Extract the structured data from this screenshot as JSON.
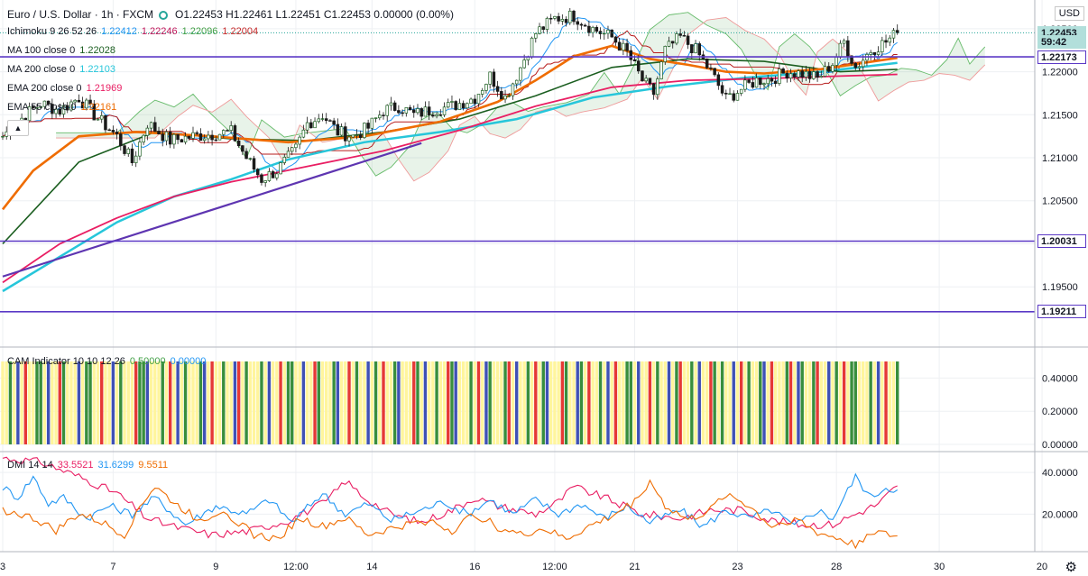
{
  "header": {
    "symbol": "Euro / U.S. Dollar · 1h · FXCM",
    "ohlc": "O1.22453 H1.22461 L1.22451 C1.22453 0.00000 (0.00%)"
  },
  "currency_label": "USD",
  "legend": [
    {
      "label": "Ichimoku 9 26 52 26",
      "values": [
        {
          "v": "1.22412",
          "color": "#2196f3"
        },
        {
          "v": "1.22246",
          "color": "#c2185b"
        },
        {
          "v": "1.22096",
          "color": "#43a047"
        },
        {
          "v": "1.22004",
          "color": "#c62828"
        }
      ]
    },
    {
      "label": "MA 100 close 0",
      "values": [
        {
          "v": "1.22028",
          "color": "#1b5e20"
        }
      ]
    },
    {
      "label": "MA 200 close 0",
      "values": [
        {
          "v": "1.22103",
          "color": "#26c6da"
        }
      ]
    },
    {
      "label": "EMA 200 close 0",
      "values": [
        {
          "v": "1.21969",
          "color": "#e91e63"
        }
      ]
    },
    {
      "label": "EMA 55 close 0",
      "values": [
        {
          "v": "1.22161",
          "color": "#ef6c00"
        }
      ]
    }
  ],
  "price_labels": [
    {
      "text": "1.22453",
      "value": 1.22453,
      "bg": "#b2dfdb"
    },
    {
      "text": "59:42",
      "value": 1.22345,
      "bg": "#b2dfdb"
    },
    {
      "text": "1.22173",
      "value": 1.22173,
      "bg": "#ffffff"
    },
    {
      "text": "1.20031",
      "value": 1.20031,
      "bg": "#ffffff"
    },
    {
      "text": "1.19211",
      "value": 1.19211,
      "bg": "#ffffff"
    }
  ],
  "cam_legend": {
    "label": "CAM Indicator 10 10 12 26",
    "v1": "0.50000",
    "v2": "0.00000",
    "c1": "#43a047",
    "c2": "#2196f3"
  },
  "dmi_legend": {
    "label": "DMI 14 14",
    "v1": "33.5521",
    "v2": "31.6299",
    "v3": "9.5511",
    "c1": "#e91e63",
    "c2": "#2196f3",
    "c3": "#ef6c00"
  },
  "chart_data": [
    {
      "type": "candlestick",
      "title": "Euro / U.S. Dollar · 1h · FXCM",
      "ylim": [
        1.188,
        1.2275
      ],
      "y_ticks": [
        1.195,
        1.2,
        1.205,
        1.21,
        1.215,
        1.22,
        1.225
      ],
      "y_tick_labels": [
        "1.19500",
        "1.20000",
        "1.20500",
        "1.21000",
        "1.21500",
        "1.22000",
        "1.22500"
      ],
      "x_ticks": [
        {
          "i": 0,
          "label": "3"
        },
        {
          "i": 29,
          "label": "7"
        },
        {
          "i": 56,
          "label": "9"
        },
        {
          "i": 77,
          "label": "12:00"
        },
        {
          "i": 97,
          "label": "14"
        },
        {
          "i": 124,
          "label": "16"
        },
        {
          "i": 145,
          "label": "12:00"
        },
        {
          "i": 166,
          "label": "21"
        },
        {
          "i": 193,
          "label": "23"
        },
        {
          "i": 219,
          "label": "28"
        },
        {
          "i": 246,
          "label": "30"
        },
        {
          "i": 273,
          "label": "20"
        }
      ],
      "horizontal_levels": [
        1.22173,
        1.20031,
        1.19211
      ],
      "last_price": 1.22453,
      "trendline": [
        {
          "i": 0,
          "v": 1.1962
        },
        {
          "i": 110,
          "v": 1.2117
        }
      ],
      "closes_keypoints": [
        [
          0,
          1.2125
        ],
        [
          6,
          1.215
        ],
        [
          10,
          1.2163
        ],
        [
          15,
          1.2155
        ],
        [
          20,
          1.217
        ],
        [
          24,
          1.215
        ],
        [
          30,
          1.2125
        ],
        [
          34,
          1.2095
        ],
        [
          38,
          1.214
        ],
        [
          44,
          1.212
        ],
        [
          50,
          1.2125
        ],
        [
          56,
          1.2128
        ],
        [
          60,
          1.213
        ],
        [
          64,
          1.21
        ],
        [
          68,
          1.2075
        ],
        [
          72,
          1.2085
        ],
        [
          77,
          1.211
        ],
        [
          80,
          1.214
        ],
        [
          84,
          1.215
        ],
        [
          88,
          1.213
        ],
        [
          92,
          1.2125
        ],
        [
          96,
          1.2135
        ],
        [
          100,
          1.2155
        ],
        [
          104,
          1.216
        ],
        [
          108,
          1.215
        ],
        [
          112,
          1.2155
        ],
        [
          118,
          1.216
        ],
        [
          124,
          1.217
        ],
        [
          128,
          1.2195
        ],
        [
          132,
          1.217
        ],
        [
          136,
          1.2205
        ],
        [
          140,
          1.2245
        ],
        [
          145,
          1.2262
        ],
        [
          150,
          1.2265
        ],
        [
          155,
          1.225
        ],
        [
          160,
          1.224
        ],
        [
          164,
          1.2222
        ],
        [
          168,
          1.219
        ],
        [
          171,
          1.2175
        ],
        [
          174,
          1.2225
        ],
        [
          178,
          1.224
        ],
        [
          182,
          1.2225
        ],
        [
          186,
          1.22
        ],
        [
          190,
          1.2168
        ],
        [
          194,
          1.218
        ],
        [
          198,
          1.219
        ],
        [
          202,
          1.2192
        ],
        [
          206,
          1.22
        ],
        [
          210,
          1.2198
        ],
        [
          214,
          1.2192
        ],
        [
          218,
          1.221
        ],
        [
          221,
          1.2235
        ],
        [
          224,
          1.2205
        ],
        [
          228,
          1.2225
        ],
        [
          232,
          1.2235
        ],
        [
          235,
          1.2245
        ]
      ],
      "last_candle_index": 235,
      "cloud_end_index": 258,
      "ma100": [
        [
          0,
          1.2
        ],
        [
          20,
          1.2095
        ],
        [
          40,
          1.213
        ],
        [
          60,
          1.2122
        ],
        [
          80,
          1.212
        ],
        [
          100,
          1.213
        ],
        [
          120,
          1.2145
        ],
        [
          140,
          1.2172
        ],
        [
          160,
          1.2205
        ],
        [
          180,
          1.2215
        ],
        [
          200,
          1.2212
        ],
        [
          220,
          1.22
        ],
        [
          235,
          1.22028
        ]
      ],
      "ma200": [
        [
          0,
          1.1945
        ],
        [
          15,
          1.1985
        ],
        [
          30,
          1.2025
        ],
        [
          45,
          1.2055
        ],
        [
          60,
          1.2075
        ],
        [
          75,
          1.2098
        ],
        [
          95,
          1.2118
        ],
        [
          115,
          1.213
        ],
        [
          135,
          1.2145
        ],
        [
          155,
          1.217
        ],
        [
          175,
          1.2183
        ],
        [
          195,
          1.2193
        ],
        [
          215,
          1.22
        ],
        [
          235,
          1.22103
        ]
      ],
      "ema200": [
        [
          0,
          1.1955
        ],
        [
          15,
          1.2
        ],
        [
          30,
          1.203
        ],
        [
          45,
          1.2055
        ],
        [
          60,
          1.2072
        ],
        [
          80,
          1.209
        ],
        [
          100,
          1.2108
        ],
        [
          120,
          1.2132
        ],
        [
          140,
          1.216
        ],
        [
          160,
          1.2182
        ],
        [
          180,
          1.219
        ],
        [
          200,
          1.2192
        ],
        [
          220,
          1.2195
        ],
        [
          235,
          1.21969
        ]
      ],
      "ema55": [
        [
          0,
          1.204
        ],
        [
          8,
          1.2085
        ],
        [
          20,
          1.2125
        ],
        [
          35,
          1.213
        ],
        [
          55,
          1.2125
        ],
        [
          75,
          1.2118
        ],
        [
          95,
          1.2125
        ],
        [
          115,
          1.2142
        ],
        [
          130,
          1.2165
        ],
        [
          140,
          1.219
        ],
        [
          150,
          1.2218
        ],
        [
          160,
          1.223
        ],
        [
          170,
          1.2215
        ],
        [
          180,
          1.2208
        ],
        [
          190,
          1.22
        ],
        [
          200,
          1.2198
        ],
        [
          215,
          1.2203
        ],
        [
          235,
          1.22161
        ]
      ]
    },
    {
      "type": "bar",
      "title": "CAM Indicator 10 10 12 26",
      "ylim": [
        0,
        0.5
      ],
      "y_ticks": [
        0,
        0.2,
        0.4
      ],
      "y_tick_labels": [
        "0.00000",
        "0.20000",
        "0.40000"
      ],
      "bar_value": 0.5,
      "bar_count": 236,
      "palette": {
        "Y": "#fff59d",
        "G": "#388e3c",
        "B": "#3f51b5",
        "R": "#e53935"
      },
      "color_pattern": "YYGYBYRYYGGYBYYRGYYYBYGGYYRYYBYGYYYRGGBYYYGYRYBYGYYYGBYRYYGYYBRYGYYYGYBYYRYGGYYBYYRGYYYGBYYRYGYYBYGYRYYGBYYYRGYBYYGYYRGBYYYGYRYBGYYYGRYBYYGYRYGBYYYRGYYBGYRYYGYBYRYYGGYBYYRYGYYBYGRYYGYBYYRGYGYYBYRYGYYGBYRYYYGRYBGYYGRYYBYGYRYGGY"
    },
    {
      "type": "line",
      "title": "DMI 14 14",
      "ylim": [
        2,
        50
      ],
      "y_ticks": [
        20,
        40
      ],
      "y_tick_labels": [
        "20.0000",
        "40.0000"
      ],
      "series": [
        {
          "name": "DMI 14 14",
          "color": "#e91e63",
          "values": [
            [
              0,
              47
            ],
            [
              10,
              45
            ],
            [
              20,
              38
            ],
            [
              30,
              30
            ],
            [
              38,
              18
            ],
            [
              45,
              14
            ],
            [
              55,
              10
            ],
            [
              65,
              12
            ],
            [
              75,
              17
            ],
            [
              85,
              26
            ],
            [
              90,
              36
            ],
            [
              95,
              28
            ],
            [
              102,
              20
            ],
            [
              110,
              16
            ],
            [
              118,
              22
            ],
            [
              124,
              28
            ],
            [
              130,
              24
            ],
            [
              140,
              20
            ],
            [
              146,
              26
            ],
            [
              150,
              33
            ],
            [
              158,
              28
            ],
            [
              168,
              20
            ],
            [
              178,
              18
            ],
            [
              186,
              22
            ],
            [
              194,
              22
            ],
            [
              202,
              17
            ],
            [
              210,
              15
            ],
            [
              218,
              15
            ],
            [
              224,
              20
            ],
            [
              230,
              25
            ],
            [
              235,
              33.5521
            ]
          ]
        },
        {
          "color": "#2196f3",
          "values": [
            [
              0,
              33
            ],
            [
              4,
              28
            ],
            [
              8,
              38
            ],
            [
              12,
              25
            ],
            [
              16,
              28
            ],
            [
              22,
              18
            ],
            [
              28,
              24
            ],
            [
              34,
              20
            ],
            [
              40,
              28
            ],
            [
              48,
              15
            ],
            [
              56,
              24
            ],
            [
              64,
              20
            ],
            [
              70,
              27
            ],
            [
              76,
              16
            ],
            [
              84,
              30
            ],
            [
              90,
              20
            ],
            [
              96,
              25
            ],
            [
              102,
              17
            ],
            [
              110,
              22
            ],
            [
              116,
              26
            ],
            [
              122,
              20
            ],
            [
              128,
              27
            ],
            [
              134,
              20
            ],
            [
              140,
              27
            ],
            [
              146,
              20
            ],
            [
              152,
              25
            ],
            [
              158,
              18
            ],
            [
              164,
              24
            ],
            [
              170,
              16
            ],
            [
              178,
              22
            ],
            [
              184,
              14
            ],
            [
              190,
              22
            ],
            [
              196,
              18
            ],
            [
              202,
              22
            ],
            [
              208,
              14
            ],
            [
              214,
              22
            ],
            [
              218,
              18
            ],
            [
              224,
              38
            ],
            [
              228,
              28
            ],
            [
              232,
              33
            ],
            [
              235,
              31.6299
            ]
          ]
        },
        {
          "color": "#ef6c00",
          "values": [
            [
              0,
              22
            ],
            [
              8,
              18
            ],
            [
              14,
              12
            ],
            [
              20,
              20
            ],
            [
              26,
              16
            ],
            [
              32,
              10
            ],
            [
              36,
              24
            ],
            [
              40,
              33
            ],
            [
              46,
              24
            ],
            [
              52,
              17
            ],
            [
              58,
              22
            ],
            [
              66,
              10
            ],
            [
              72,
              8
            ],
            [
              78,
              18
            ],
            [
              84,
              14
            ],
            [
              90,
              18
            ],
            [
              96,
              10
            ],
            [
              104,
              14
            ],
            [
              112,
              17
            ],
            [
              118,
              12
            ],
            [
              124,
              20
            ],
            [
              130,
              14
            ],
            [
              136,
              10
            ],
            [
              142,
              13
            ],
            [
              148,
              8
            ],
            [
              154,
              14
            ],
            [
              160,
              19
            ],
            [
              166,
              26
            ],
            [
              170,
              36
            ],
            [
              174,
              24
            ],
            [
              180,
              17
            ],
            [
              186,
              22
            ],
            [
              190,
              30
            ],
            [
              196,
              24
            ],
            [
              202,
              14
            ],
            [
              208,
              18
            ],
            [
              214,
              11
            ],
            [
              220,
              8
            ],
            [
              224,
              5
            ],
            [
              228,
              12
            ],
            [
              232,
              10
            ],
            [
              235,
              9.5511
            ]
          ]
        }
      ]
    }
  ]
}
